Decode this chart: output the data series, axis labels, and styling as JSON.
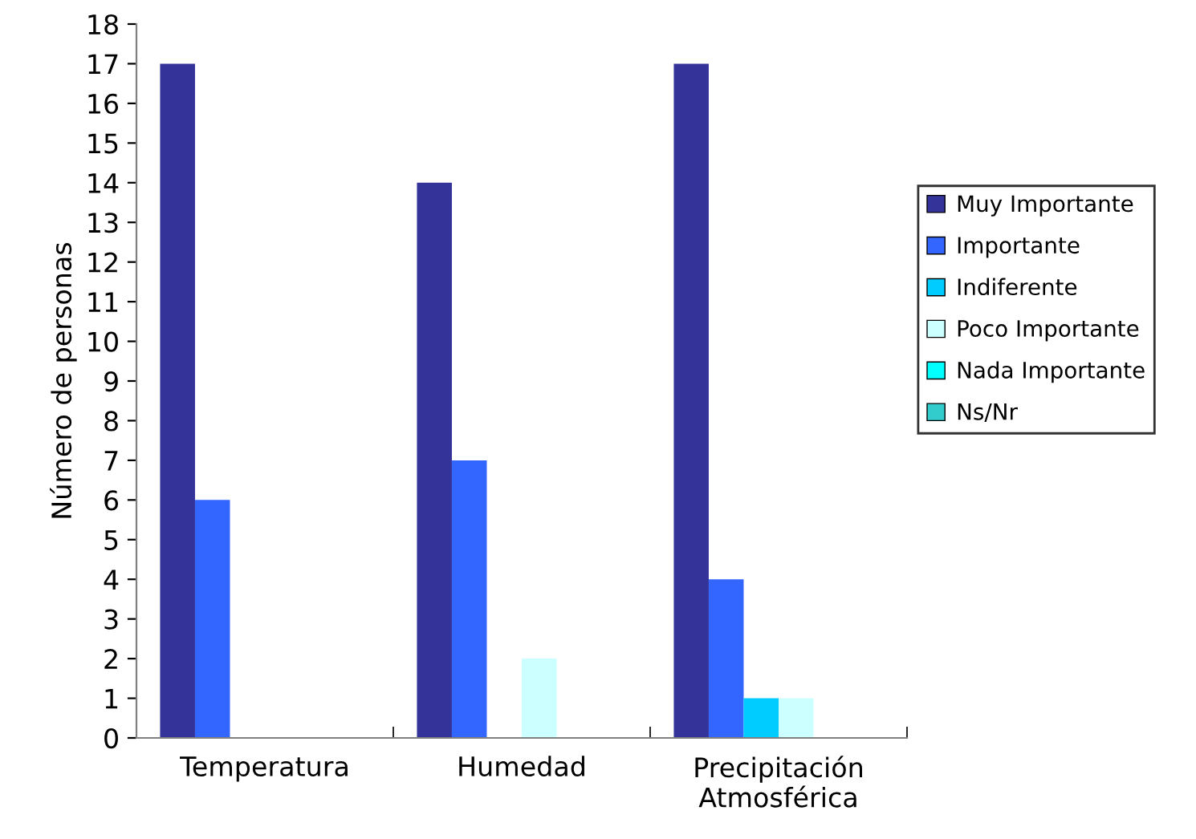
{
  "chart_data": {
    "type": "bar",
    "ylabel": "Número de personas",
    "categories": [
      "Temperatura",
      "Humedad",
      "Precipitación\nAtmosférica"
    ],
    "series": [
      {
        "name": "Muy Importante",
        "color": "#333399",
        "values": [
          17,
          14,
          17
        ]
      },
      {
        "name": "Importante",
        "color": "#3366ff",
        "values": [
          6,
          7,
          4
        ]
      },
      {
        "name": "Indiferente",
        "color": "#00ccff",
        "values": [
          0,
          0,
          1
        ]
      },
      {
        "name": "Poco Importante",
        "color": "#ccffff",
        "values": [
          0,
          2,
          1
        ]
      },
      {
        "name": "Nada Importante",
        "color": "#00ffff",
        "values": [
          0,
          0,
          0
        ]
      },
      {
        "name": "Ns/Nr",
        "color": "#33cccc",
        "values": [
          0,
          0,
          0
        ]
      }
    ],
    "ylim": [
      0,
      18
    ],
    "yticks": [
      0,
      1,
      2,
      3,
      4,
      5,
      6,
      7,
      8,
      9,
      10,
      11,
      12,
      13,
      14,
      15,
      16,
      17,
      18
    ],
    "grid": false,
    "legend": "right"
  }
}
